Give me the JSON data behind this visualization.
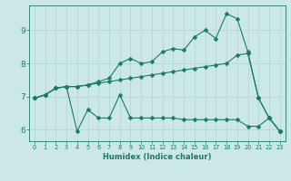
{
  "xlabel": "Humidex (Indice chaleur)",
  "ylabel": "",
  "bg_color": "#cce8e6",
  "grid_color": "#add4d2",
  "line_color": "#1a7a6a",
  "xlim": [
    -0.5,
    23.5
  ],
  "ylim": [
    5.65,
    9.75
  ],
  "yticks": [
    6,
    7,
    8,
    9
  ],
  "xticks": [
    0,
    1,
    2,
    3,
    4,
    5,
    6,
    7,
    8,
    9,
    10,
    11,
    12,
    13,
    14,
    15,
    16,
    17,
    18,
    19,
    20,
    21,
    22,
    23
  ],
  "line1_x": [
    0,
    1,
    2,
    3,
    4,
    5,
    6,
    7,
    8,
    9,
    10,
    11,
    12,
    13,
    14,
    15,
    16,
    17,
    18,
    19,
    20,
    21,
    22,
    23
  ],
  "line1_y": [
    6.95,
    7.05,
    7.25,
    7.3,
    5.95,
    6.6,
    6.35,
    6.35,
    7.05,
    6.35,
    6.35,
    6.35,
    6.35,
    6.35,
    6.3,
    6.3,
    6.3,
    6.3,
    6.3,
    6.3,
    6.1,
    6.1,
    6.35,
    5.95
  ],
  "line2_x": [
    0,
    1,
    2,
    3,
    4,
    5,
    6,
    7,
    8,
    9,
    10,
    11,
    12,
    13,
    14,
    15,
    16,
    17,
    18,
    19,
    20,
    21,
    22,
    23
  ],
  "line2_y": [
    6.95,
    7.05,
    7.25,
    7.3,
    7.3,
    7.35,
    7.4,
    7.45,
    7.5,
    7.55,
    7.6,
    7.65,
    7.7,
    7.75,
    7.8,
    7.85,
    7.9,
    7.95,
    8.0,
    8.25,
    8.3,
    6.95,
    6.35,
    5.95
  ],
  "line3_x": [
    0,
    1,
    2,
    3,
    4,
    5,
    6,
    7,
    8,
    9,
    10,
    11,
    12,
    13,
    14,
    15,
    16,
    17,
    18,
    19,
    20,
    21,
    22,
    23
  ],
  "line3_y": [
    6.95,
    7.05,
    7.25,
    7.3,
    7.3,
    7.35,
    7.45,
    7.55,
    8.0,
    8.15,
    8.0,
    8.05,
    8.35,
    8.45,
    8.4,
    8.8,
    9.0,
    8.75,
    9.5,
    9.35,
    8.35,
    6.95,
    6.35,
    5.95
  ],
  "xlabel_fontsize": 6.0,
  "xtick_fontsize": 4.8,
  "ytick_fontsize": 6.5,
  "marker_size": 2.5,
  "line_width": 0.8
}
